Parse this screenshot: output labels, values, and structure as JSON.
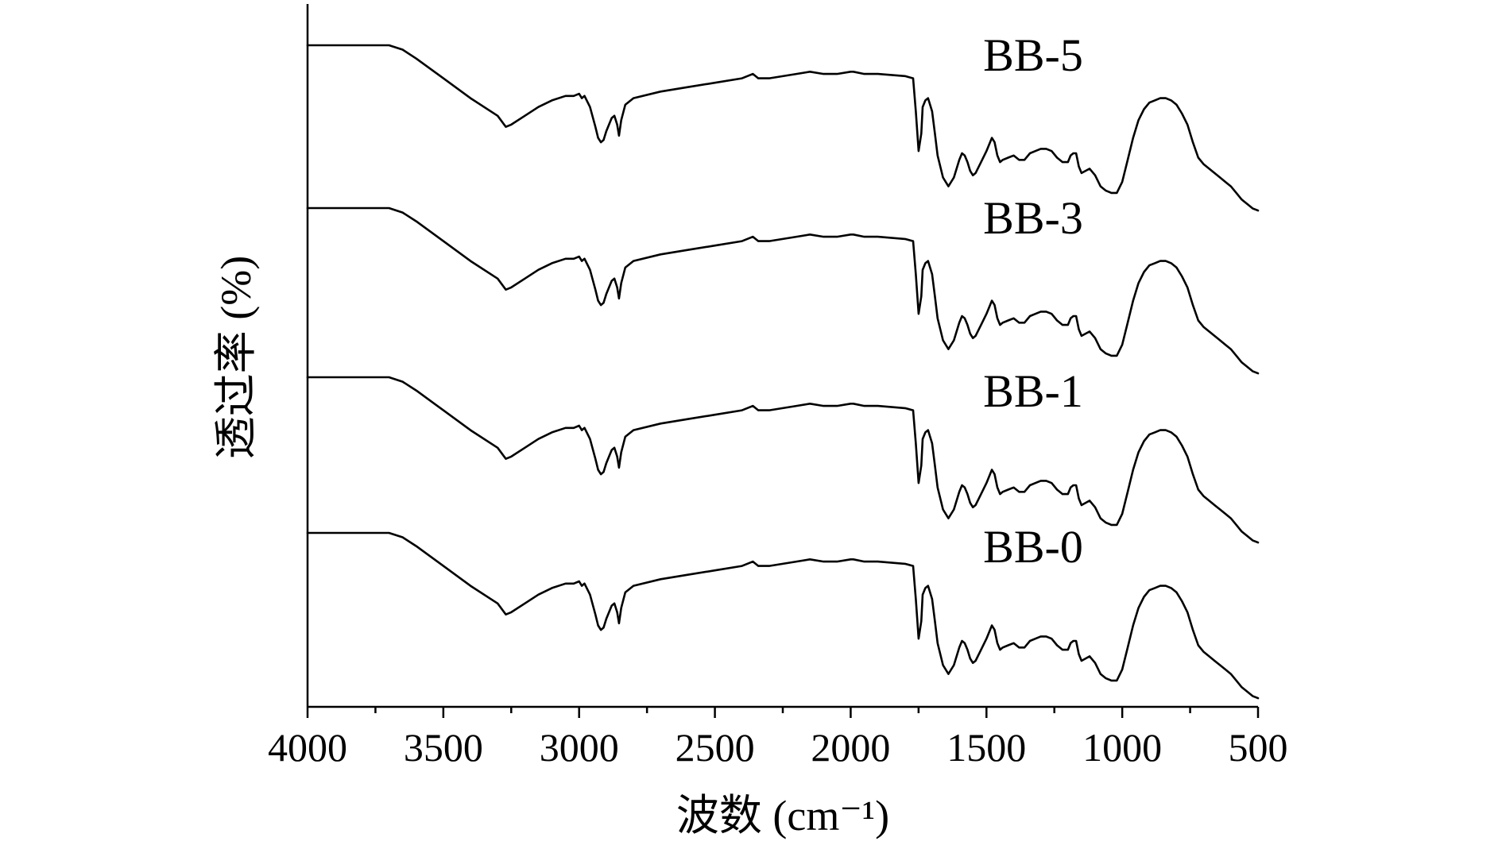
{
  "chart_data": {
    "type": "line",
    "title": "",
    "xlabel": "波数 (cm⁻¹)",
    "ylabel": "透过率 (%)",
    "xlim": [
      4000,
      500
    ],
    "x_reversed": true,
    "xticks": [
      4000,
      3500,
      3000,
      2500,
      2000,
      1500,
      1000,
      500
    ],
    "yticks": [],
    "grid": false,
    "legend": "labels next to curves at right",
    "offset_stack": true,
    "x": [
      4000,
      3900,
      3800,
      3700,
      3650,
      3600,
      3500,
      3400,
      3300,
      3270,
      3250,
      3200,
      3150,
      3100,
      3050,
      3020,
      3000,
      2990,
      2980,
      2960,
      2940,
      2930,
      2920,
      2910,
      2900,
      2880,
      2870,
      2860,
      2853,
      2845,
      2830,
      2800,
      2700,
      2600,
      2500,
      2400,
      2360,
      2340,
      2300,
      2200,
      2150,
      2100,
      2050,
      2000,
      1990,
      1950,
      1900,
      1800,
      1770,
      1760,
      1750,
      1740,
      1735,
      1725,
      1715,
      1700,
      1690,
      1680,
      1660,
      1640,
      1620,
      1600,
      1590,
      1580,
      1570,
      1560,
      1550,
      1540,
      1520,
      1500,
      1480,
      1470,
      1460,
      1450,
      1440,
      1420,
      1400,
      1380,
      1360,
      1340,
      1320,
      1300,
      1280,
      1260,
      1240,
      1220,
      1200,
      1190,
      1180,
      1170,
      1160,
      1150,
      1120,
      1100,
      1080,
      1060,
      1040,
      1020,
      1000,
      980,
      960,
      940,
      920,
      900,
      880,
      860,
      840,
      820,
      800,
      780,
      760,
      740,
      720,
      700,
      680,
      660,
      640,
      620,
      600,
      580,
      560,
      540,
      520,
      500
    ],
    "series": [
      {
        "name": "BB-5",
        "values": [
          100,
          100,
          100,
          100,
          98,
          94,
          85,
          76,
          68,
          63,
          64,
          68,
          72,
          75,
          77,
          77,
          78,
          76,
          77,
          72,
          63,
          58,
          56,
          57,
          61,
          67,
          68,
          64,
          59,
          66,
          73,
          76,
          79,
          81,
          83,
          85,
          87,
          85,
          85,
          87,
          88,
          87,
          87,
          88,
          88,
          87,
          87,
          86,
          85,
          70,
          52,
          60,
          72,
          75,
          76,
          70,
          60,
          50,
          40,
          36,
          40,
          48,
          51,
          50,
          47,
          43,
          41,
          42,
          47,
          52,
          58,
          56,
          50,
          47,
          48,
          49,
          50,
          48,
          48,
          51,
          52,
          53,
          53,
          52,
          49,
          47,
          47,
          50,
          51,
          51,
          45,
          42,
          44,
          41,
          36,
          34,
          33,
          33,
          38,
          48,
          58,
          66,
          71,
          74,
          75,
          76,
          76,
          75,
          73,
          69,
          64,
          56,
          49,
          46,
          44,
          42,
          40,
          38,
          36,
          33,
          30,
          28,
          26,
          25
        ]
      },
      {
        "name": "BB-3",
        "values": [
          100,
          100,
          100,
          100,
          98,
          94,
          85,
          76,
          68,
          63,
          64,
          68,
          72,
          75,
          77,
          77,
          78,
          76,
          77,
          72,
          63,
          58,
          56,
          57,
          61,
          67,
          68,
          64,
          59,
          66,
          73,
          76,
          79,
          81,
          83,
          85,
          87,
          85,
          85,
          87,
          88,
          87,
          87,
          88,
          88,
          87,
          87,
          86,
          85,
          70,
          52,
          60,
          72,
          75,
          76,
          70,
          60,
          50,
          40,
          36,
          40,
          48,
          51,
          50,
          47,
          43,
          41,
          42,
          47,
          52,
          58,
          56,
          50,
          47,
          48,
          49,
          50,
          48,
          48,
          51,
          52,
          53,
          53,
          52,
          49,
          47,
          47,
          50,
          51,
          51,
          45,
          42,
          44,
          41,
          36,
          34,
          33,
          33,
          38,
          48,
          58,
          66,
          71,
          74,
          75,
          76,
          76,
          75,
          73,
          69,
          64,
          56,
          49,
          46,
          44,
          42,
          40,
          38,
          36,
          33,
          30,
          28,
          26,
          25
        ]
      },
      {
        "name": "BB-1",
        "values": [
          100,
          100,
          100,
          100,
          98,
          94,
          85,
          76,
          68,
          63,
          64,
          68,
          72,
          75,
          77,
          77,
          78,
          76,
          77,
          72,
          63,
          58,
          56,
          57,
          61,
          67,
          68,
          64,
          59,
          66,
          73,
          76,
          79,
          81,
          83,
          85,
          87,
          85,
          85,
          87,
          88,
          87,
          87,
          88,
          88,
          87,
          87,
          86,
          85,
          70,
          52,
          60,
          72,
          75,
          76,
          70,
          60,
          50,
          40,
          36,
          40,
          48,
          51,
          50,
          47,
          43,
          41,
          42,
          47,
          52,
          58,
          56,
          50,
          47,
          48,
          49,
          50,
          48,
          48,
          51,
          52,
          53,
          53,
          52,
          49,
          47,
          47,
          50,
          51,
          51,
          45,
          42,
          44,
          41,
          36,
          34,
          33,
          33,
          38,
          48,
          58,
          66,
          71,
          74,
          75,
          76,
          76,
          75,
          73,
          69,
          64,
          56,
          49,
          46,
          44,
          42,
          40,
          38,
          36,
          33,
          30,
          28,
          26,
          25
        ]
      },
      {
        "name": "BB-0",
        "values": [
          100,
          100,
          100,
          100,
          98,
          94,
          85,
          76,
          68,
          63,
          64,
          68,
          72,
          75,
          77,
          77,
          78,
          76,
          77,
          72,
          63,
          58,
          56,
          57,
          61,
          67,
          68,
          64,
          59,
          66,
          73,
          76,
          79,
          81,
          83,
          85,
          87,
          85,
          85,
          87,
          88,
          87,
          87,
          88,
          88,
          87,
          87,
          86,
          85,
          70,
          52,
          60,
          72,
          75,
          76,
          70,
          60,
          50,
          40,
          36,
          40,
          48,
          51,
          50,
          47,
          43,
          41,
          42,
          47,
          52,
          58,
          56,
          50,
          47,
          48,
          49,
          50,
          48,
          48,
          51,
          52,
          53,
          53,
          52,
          49,
          47,
          47,
          50,
          51,
          51,
          45,
          42,
          44,
          41,
          36,
          34,
          33,
          33,
          38,
          48,
          58,
          66,
          71,
          74,
          75,
          76,
          76,
          75,
          73,
          69,
          64,
          56,
          49,
          46,
          44,
          42,
          40,
          38,
          36,
          33,
          30,
          28,
          26,
          25
        ]
      }
    ]
  }
}
